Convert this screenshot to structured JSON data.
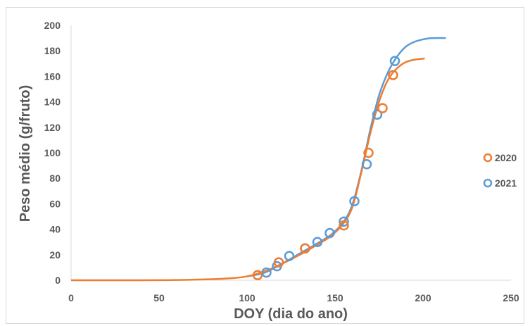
{
  "chart_data": {
    "type": "scatter",
    "xlabel": "DOY (dia do ano)",
    "ylabel": "Peso médio (g/fruto)",
    "xlim": [
      0,
      250
    ],
    "ylim": [
      0,
      200
    ],
    "x_ticks": [
      0,
      50,
      100,
      150,
      200,
      250
    ],
    "y_ticks": [
      0,
      20,
      40,
      60,
      80,
      100,
      120,
      140,
      160,
      180,
      200
    ],
    "grid": false,
    "legend_position": "right",
    "series": [
      {
        "name": "2020",
        "color": "#ed7d31",
        "points": [
          [
            106,
            4
          ],
          [
            118,
            14
          ],
          [
            133,
            25
          ],
          [
            155,
            43
          ],
          [
            169,
            100
          ],
          [
            177,
            135
          ],
          [
            183,
            161
          ]
        ],
        "fit_curve": [
          [
            0,
            0
          ],
          [
            40,
            0
          ],
          [
            60,
            0.2
          ],
          [
            80,
            0.8
          ],
          [
            90,
            1.5
          ],
          [
            100,
            3
          ],
          [
            110,
            7
          ],
          [
            120,
            13
          ],
          [
            130,
            20
          ],
          [
            140,
            28
          ],
          [
            148,
            35
          ],
          [
            155,
            45
          ],
          [
            160,
            58
          ],
          [
            165,
            85
          ],
          [
            170,
            115
          ],
          [
            175,
            140
          ],
          [
            180,
            157
          ],
          [
            185,
            166
          ],
          [
            190,
            171
          ],
          [
            195,
            173
          ],
          [
            201,
            174
          ]
        ]
      },
      {
        "name": "2021",
        "color": "#5b9bd5",
        "points": [
          [
            111,
            6
          ],
          [
            117,
            11
          ],
          [
            124,
            19
          ],
          [
            133,
            25
          ],
          [
            140,
            30
          ],
          [
            147,
            37
          ],
          [
            155,
            46
          ],
          [
            161,
            62
          ],
          [
            168,
            91
          ],
          [
            174,
            130
          ],
          [
            184,
            172
          ]
        ],
        "fit_curve": [
          [
            100,
            3
          ],
          [
            110,
            6
          ],
          [
            120,
            13
          ],
          [
            130,
            21
          ],
          [
            140,
            29
          ],
          [
            148,
            36
          ],
          [
            155,
            46
          ],
          [
            160,
            60
          ],
          [
            165,
            86
          ],
          [
            170,
            118
          ],
          [
            175,
            145
          ],
          [
            180,
            163
          ],
          [
            185,
            175
          ],
          [
            190,
            183
          ],
          [
            195,
            187
          ],
          [
            200,
            189
          ],
          [
            205,
            190
          ],
          [
            213,
            190
          ]
        ]
      }
    ]
  }
}
